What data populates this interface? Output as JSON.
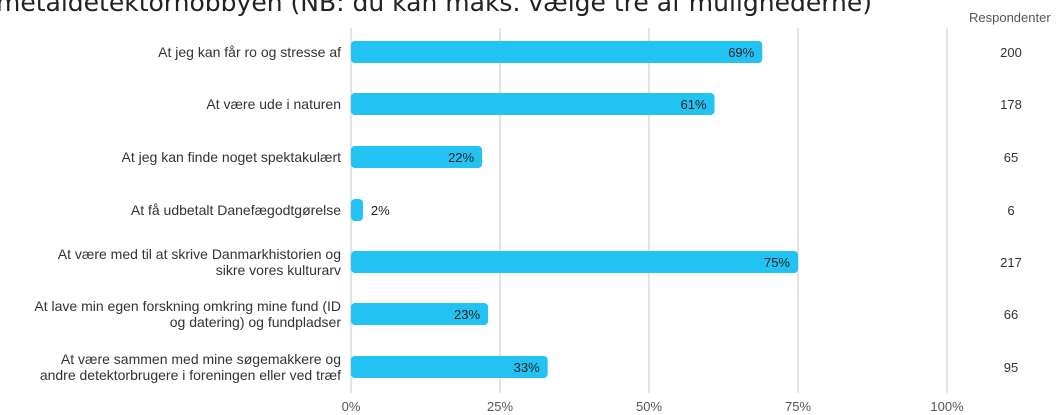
{
  "chart_data": {
    "type": "bar",
    "orientation": "horizontal",
    "title": "metaldetektorhobbyen (NB: du kan maks. vælge tre af mulighederne)",
    "categories": [
      [
        "At jeg kan får ro og stresse af"
      ],
      [
        "At være ude i naturen"
      ],
      [
        "At jeg kan finde noget spektakulært"
      ],
      [
        "At få udbetalt Danefægodtgørelse"
      ],
      [
        "At være med til at skrive Danmarkhistorien og",
        "sikre vores kulturarv"
      ],
      [
        "At lave min egen forskning omkring mine fund (ID",
        "og datering) og fundpladser"
      ],
      [
        "At være sammen med mine søgemakkere og",
        "andre detektorbrugere i foreningen eller ved træf"
      ]
    ],
    "values": [
      69,
      61,
      22,
      2,
      75,
      23,
      33
    ],
    "value_labels": [
      "69%",
      "61%",
      "22%",
      "2%",
      "75%",
      "23%",
      "33%"
    ],
    "respondents_header": "Respondenter",
    "respondents": [
      "200",
      "178",
      "65",
      "6",
      "217",
      "66",
      "95"
    ],
    "x_ticks": [
      0,
      25,
      50,
      75,
      100
    ],
    "x_tick_labels": [
      "0%",
      "25%",
      "50%",
      "75%",
      "100%"
    ],
    "xlim": [
      0,
      100
    ],
    "grid": true,
    "bar_color": "#22C3F3",
    "grid_color": "#C8C8C8"
  }
}
